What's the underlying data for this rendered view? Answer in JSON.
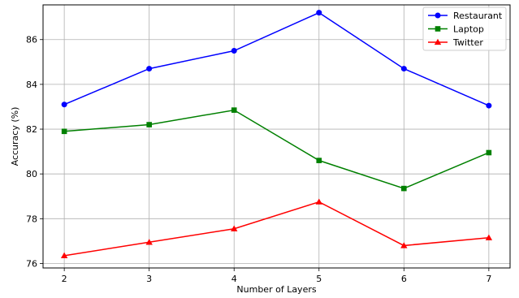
{
  "chart_data": {
    "type": "line",
    "xlabel": "Number of Layers",
    "ylabel": "Accuracy (%)",
    "x": [
      2,
      3,
      4,
      5,
      6,
      7
    ],
    "xticks": [
      2,
      3,
      4,
      5,
      6,
      7
    ],
    "yticks": [
      76,
      78,
      80,
      82,
      84,
      86
    ],
    "xlim": [
      1.75,
      7.25
    ],
    "ylim": [
      75.8,
      87.55
    ],
    "grid": true,
    "legend_position": "top-right",
    "series": [
      {
        "name": "Restaurant",
        "color": "#0000ff",
        "marker": "circle",
        "values": [
          83.1,
          84.7,
          85.5,
          87.2,
          84.7,
          83.05
        ]
      },
      {
        "name": "Laptop",
        "color": "#008000",
        "marker": "square",
        "values": [
          81.9,
          82.2,
          82.85,
          80.6,
          79.35,
          80.95
        ]
      },
      {
        "name": "Twitter",
        "color": "#ff0000",
        "marker": "triangle",
        "values": [
          76.35,
          76.95,
          77.55,
          78.75,
          76.8,
          77.15
        ]
      }
    ]
  }
}
